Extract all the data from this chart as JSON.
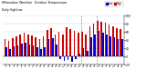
{
  "title": "Milwaukee Weather  Outdoor Temperature",
  "subtitle": "Daily High/Low",
  "highs": [
    42,
    38,
    45,
    50,
    55,
    58,
    55,
    52,
    48,
    44,
    50,
    65,
    70,
    55,
    60,
    55,
    72,
    68,
    62,
    58,
    60,
    55,
    75,
    80,
    88,
    85,
    82,
    78,
    75,
    70,
    68
  ],
  "lows": [
    22,
    18,
    25,
    28,
    32,
    35,
    30,
    28,
    22,
    18,
    22,
    42,
    45,
    30,
    -5,
    -10,
    -8,
    -12,
    -5,
    8,
    20,
    15,
    48,
    55,
    62,
    58,
    55,
    50,
    48,
    44,
    42
  ],
  "high_color": "#cc0000",
  "low_color": "#0000cc",
  "bg_color": "#ffffff",
  "plot_bg": "#ffffff",
  "ylim": [
    -20,
    100
  ],
  "yticks": [
    -20,
    0,
    20,
    40,
    60,
    80,
    100
  ],
  "ytick_labels": [
    "-20",
    "0",
    "20",
    "40",
    "60",
    "80",
    "100"
  ],
  "dashed_lines": [
    20,
    24
  ],
  "n_bars": 31,
  "bar_width": 0.38,
  "legend_labels": [
    "Low",
    "High"
  ]
}
